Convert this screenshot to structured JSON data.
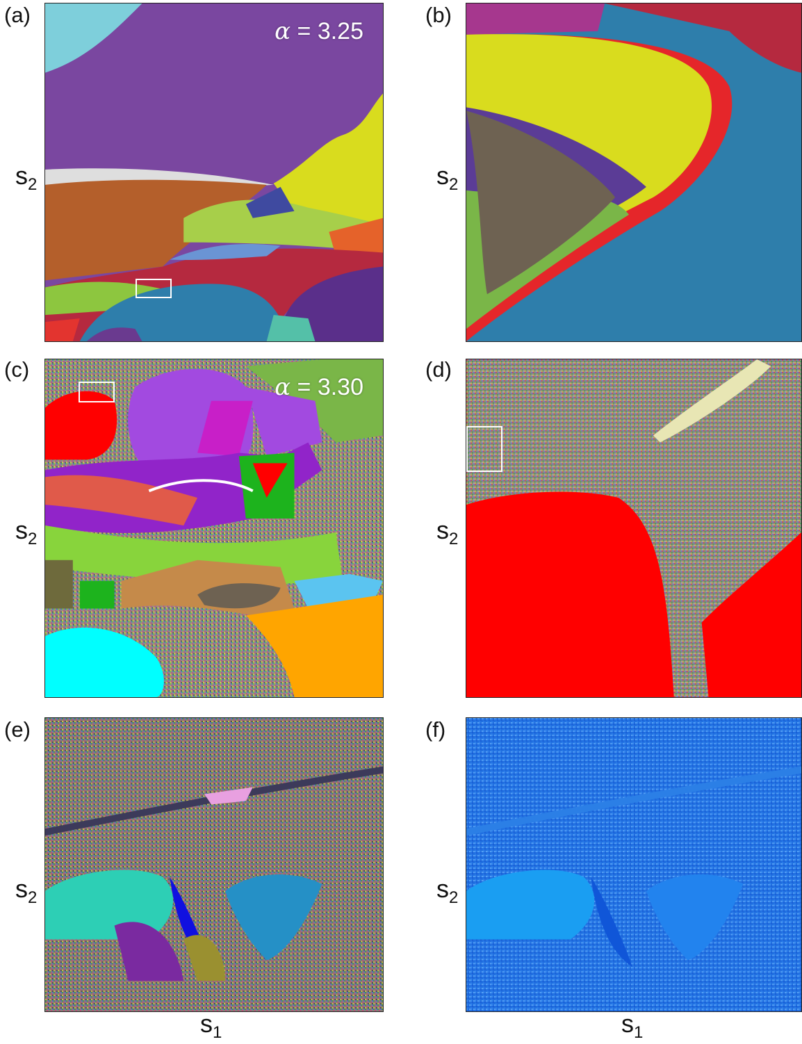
{
  "figure": {
    "panels": [
      {
        "id": "a",
        "label": "(a)",
        "annotation": "3.25",
        "ylabel": "s",
        "ysub": "2"
      },
      {
        "id": "b",
        "label": "(b)",
        "ylabel": "s",
        "ysub": "2"
      },
      {
        "id": "c",
        "label": "(c)",
        "annotation": "3.30",
        "ylabel": "s",
        "ysub": "2"
      },
      {
        "id": "d",
        "label": "(d)",
        "ylabel": "s",
        "ysub": "2"
      },
      {
        "id": "e",
        "label": "(e)",
        "ylabel": "s",
        "ysub": "2",
        "xlabel": "s",
        "xsub": "1"
      },
      {
        "id": "f",
        "label": "(f)",
        "ylabel": "s",
        "ysub": "2",
        "xlabel": "s",
        "xsub": "1"
      }
    ],
    "alpha_symbol": "α",
    "equals": " = "
  },
  "colors": {
    "purple": "#7a47a0",
    "light_cyan": "#7ecfdb",
    "yellow": "#d9dc1e",
    "brown": "#b45f2b",
    "green": "#8dc63f",
    "crimson": "#b5293f",
    "steel_blue": "#2e7eab",
    "red": "#ff0000",
    "taupe": "#6e6252",
    "orange": "#ffa500",
    "cyan": "#00ffff",
    "blue_tone": "#1f8cf2"
  }
}
